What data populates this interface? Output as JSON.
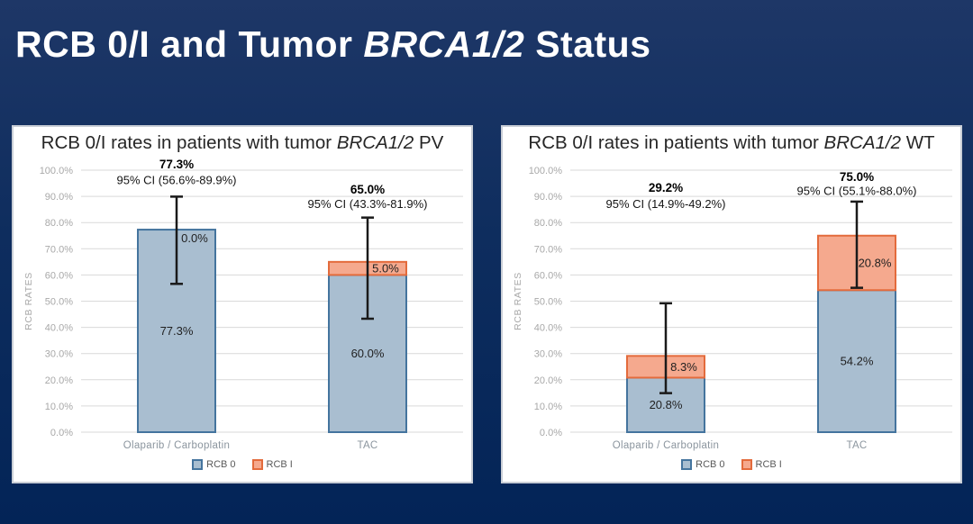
{
  "slide": {
    "title_prefix": "RCB 0/I and Tumor ",
    "title_italic": "BRCA1/2",
    "title_suffix": " Status"
  },
  "colors": {
    "rcb0_fill": "#a9bed0",
    "rcb0_border": "#44749e",
    "rcb1_fill": "#f5a98e",
    "rcb1_border": "#e36b3c",
    "error_bar": "#1a1a1a",
    "gridline": "#d9d9d9",
    "slide_bg": "#0e2d5e"
  },
  "chart_data": [
    {
      "type": "bar",
      "stacked": true,
      "title_prefix": "RCB 0/I rates in patients with tumor ",
      "title_italic": "BRCA1/2",
      "title_suffix": " PV",
      "ylabel": "RCB RATES",
      "ylim": [
        0,
        100
      ],
      "grid": true,
      "legend_position": "bottom",
      "tick_values": [
        0,
        10,
        20,
        30,
        40,
        50,
        60,
        70,
        80,
        90,
        100
      ],
      "tick_labels": [
        "0.0%",
        "10.0%",
        "20.0%",
        "30.0%",
        "40.0%",
        "50.0%",
        "60.0%",
        "70.0%",
        "80.0%",
        "90.0%",
        "100.0%"
      ],
      "categories": [
        "Olaparib / Carboplatin",
        "TAC"
      ],
      "series": [
        {
          "name": "RCB 0",
          "values": [
            77.3,
            60.0
          ],
          "labels": [
            "77.3%",
            "60.0%"
          ]
        },
        {
          "name": "RCB I",
          "values": [
            0.0,
            5.0
          ],
          "labels": [
            "0.0%",
            "5.0%"
          ]
        }
      ],
      "totals": [
        {
          "value": "77.3%",
          "ci": "95% CI (56.6%-89.9%)",
          "error_low": 56.6,
          "error_high": 89.9,
          "ann_value_y": 102.0,
          "ann_ci_y": 96.0
        },
        {
          "value": "65.0%",
          "ci": "95% CI (43.3%-81.9%)",
          "error_low": 43.3,
          "error_high": 81.9,
          "ann_value_y": 92.4,
          "ann_ci_y": 87.0
        }
      ]
    },
    {
      "type": "bar",
      "stacked": true,
      "title_prefix": "RCB 0/I rates in patients with tumor ",
      "title_italic": "BRCA1/2",
      "title_suffix": " WT",
      "ylabel": "RCB RATES",
      "ylim": [
        0,
        100
      ],
      "grid": true,
      "legend_position": "bottom",
      "tick_values": [
        0,
        10,
        20,
        30,
        40,
        50,
        60,
        70,
        80,
        90,
        100
      ],
      "tick_labels": [
        "0.0%",
        "10.0%",
        "20.0%",
        "30.0%",
        "40.0%",
        "50.0%",
        "60.0%",
        "70.0%",
        "80.0%",
        "90.0%",
        "100.0%"
      ],
      "categories": [
        "Olaparib / Carboplatin",
        "TAC"
      ],
      "series": [
        {
          "name": "RCB 0",
          "values": [
            20.8,
            54.2
          ],
          "labels": [
            "20.8%",
            "54.2%"
          ]
        },
        {
          "name": "RCB I",
          "values": [
            8.3,
            20.8
          ],
          "labels": [
            "8.3%",
            "20.8%"
          ]
        }
      ],
      "totals": [
        {
          "value": "29.2%",
          "ci": "95% CI (14.9%-49.2%)",
          "error_low": 14.9,
          "error_high": 49.2,
          "ann_value_y": 93.1,
          "ann_ci_y": 86.9
        },
        {
          "value": "75.0%",
          "ci": "95% CI (55.1%-88.0%)",
          "error_low": 55.1,
          "error_high": 88.0,
          "ann_value_y": 97.2,
          "ann_ci_y": 92.0
        }
      ]
    }
  ]
}
